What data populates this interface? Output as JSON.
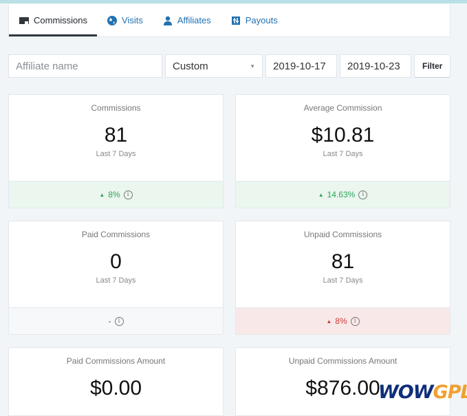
{
  "tabs": [
    {
      "label": "Commissions",
      "icon": "commissions-icon",
      "active": true
    },
    {
      "label": "Visits",
      "icon": "globe-icon"
    },
    {
      "label": "Affiliates",
      "icon": "user-icon"
    },
    {
      "label": "Payouts",
      "icon": "payouts-icon"
    }
  ],
  "filters": {
    "affiliate_placeholder": "Affiliate name",
    "range": "Custom",
    "start_date": "2019-10-17",
    "end_date": "2019-10-23",
    "filter_label": "Filter"
  },
  "cards": [
    {
      "title": "Commissions",
      "value": "81",
      "period": "Last 7 Days",
      "change": "8%",
      "trend": "up"
    },
    {
      "title": "Average Commission",
      "value": "$10.81",
      "period": "Last 7 Days",
      "change": "14.63%",
      "trend": "up"
    },
    {
      "title": "Paid Commissions",
      "value": "0",
      "period": "Last 7 Days",
      "change": "-",
      "trend": "neutral"
    },
    {
      "title": "Unpaid Commissions",
      "value": "81",
      "period": "Last 7 Days",
      "change": "8%",
      "trend": "down"
    },
    {
      "title": "Paid Commissions Amount",
      "value": "$0.00"
    },
    {
      "title": "Unpaid Commissions Amount",
      "value": "$876.00"
    }
  ],
  "watermark": {
    "part1": "WOW",
    "part2": "GPL"
  },
  "colors": {
    "up": "#2ea55a",
    "down": "#d03a3a",
    "link": "#2271b1"
  }
}
